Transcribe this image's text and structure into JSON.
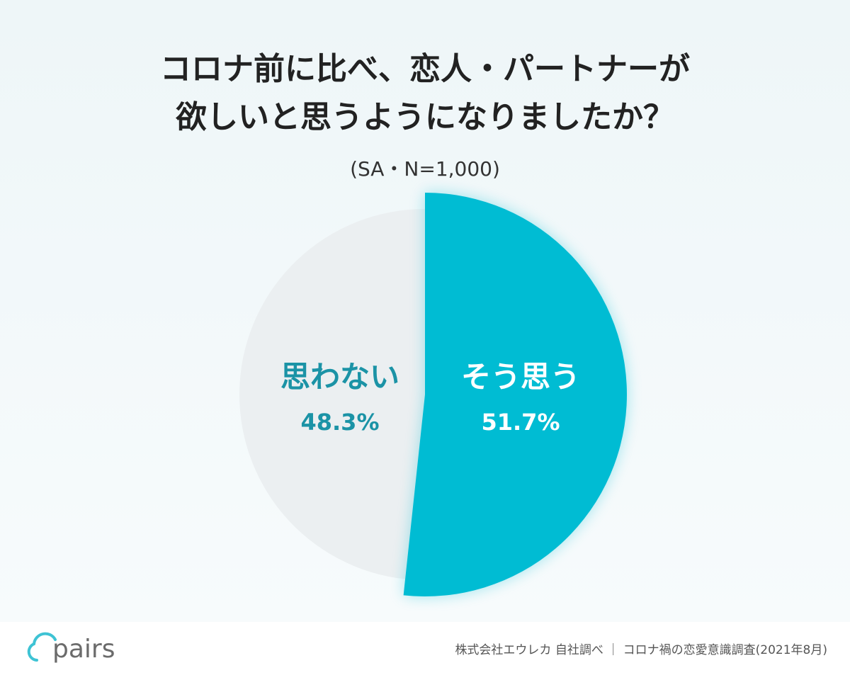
{
  "chart_data": {
    "type": "pie",
    "title": [
      "コロナ前に比べ、恋人・パートナーが",
      "欲しいと思うようになりましたか？"
    ],
    "subtitle": "(SA・N=1,000)",
    "categories": [
      "そう思う",
      "思わない"
    ],
    "values": [
      51.7,
      48.3
    ],
    "value_labels": [
      "51.7%",
      "48.3%"
    ],
    "colors": [
      "#00bcd3",
      "#ebeff1"
    ],
    "label_colors": [
      "#ffffff",
      "#1b93a6"
    ]
  },
  "footer": {
    "logo": "pairs",
    "source": "株式会社エウレカ 自社調べ ｜ コロナ禍の恋愛意識調査(2021年8月)"
  }
}
